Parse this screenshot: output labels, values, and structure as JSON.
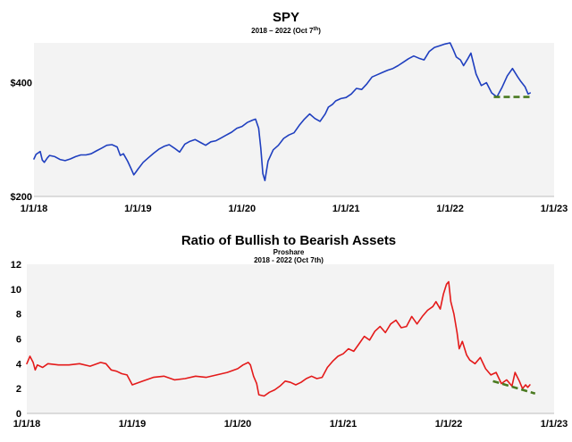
{
  "chart_data": [
    {
      "type": "line",
      "title": "SPY",
      "subtitle": "2018 – 2022 (Oct 7",
      "subtitle_sup": "th",
      "subtitle_tail": ")",
      "xlabel": "",
      "ylabel": "",
      "xlim": [
        2018.0,
        2023.0
      ],
      "ylim": [
        200,
        470
      ],
      "x_ticks": [
        2018,
        2019,
        2020,
        2021,
        2022,
        2023
      ],
      "x_tick_labels": [
        "1/1/18",
        "1/1/19",
        "1/1/20",
        "1/1/21",
        "1/1/22",
        "1/1/23"
      ],
      "y_ticks": [
        200,
        400
      ],
      "y_tick_labels": [
        "$200",
        "$400"
      ],
      "grid": false,
      "series": [
        {
          "color": "#1f3fbf",
          "x": [
            2018.0,
            2018.02,
            2018.06,
            2018.08,
            2018.1,
            2018.13,
            2018.15,
            2018.2,
            2018.25,
            2018.3,
            2018.35,
            2018.4,
            2018.45,
            2018.5,
            2018.55,
            2018.6,
            2018.65,
            2018.7,
            2018.75,
            2018.8,
            2018.83,
            2018.86,
            2018.9,
            2018.93,
            2018.96,
            2018.98,
            2019.0,
            2019.05,
            2019.1,
            2019.15,
            2019.2,
            2019.25,
            2019.3,
            2019.35,
            2019.4,
            2019.45,
            2019.5,
            2019.55,
            2019.6,
            2019.65,
            2019.7,
            2019.75,
            2019.8,
            2019.85,
            2019.9,
            2019.95,
            2020.0,
            2020.05,
            2020.1,
            2020.13,
            2020.16,
            2020.18,
            2020.2,
            2020.22,
            2020.25,
            2020.3,
            2020.35,
            2020.4,
            2020.45,
            2020.5,
            2020.55,
            2020.6,
            2020.65,
            2020.7,
            2020.75,
            2020.8,
            2020.83,
            2020.87,
            2020.9,
            2020.95,
            2021.0,
            2021.05,
            2021.1,
            2021.15,
            2021.2,
            2021.25,
            2021.3,
            2021.35,
            2021.4,
            2021.45,
            2021.5,
            2021.55,
            2021.6,
            2021.65,
            2021.7,
            2021.75,
            2021.8,
            2021.85,
            2021.9,
            2021.95,
            2022.0,
            2022.03,
            2022.06,
            2022.1,
            2022.13,
            2022.17,
            2022.2,
            2022.25,
            2022.3,
            2022.35,
            2022.4,
            2022.45,
            2022.5,
            2022.55,
            2022.6,
            2022.65,
            2022.68,
            2022.72,
            2022.75,
            2022.77
          ],
          "values": [
            266,
            274,
            279,
            264,
            260,
            268,
            272,
            270,
            265,
            263,
            266,
            270,
            273,
            273,
            275,
            280,
            285,
            290,
            291,
            287,
            272,
            275,
            262,
            250,
            238,
            243,
            248,
            260,
            268,
            276,
            283,
            288,
            291,
            285,
            278,
            292,
            297,
            300,
            295,
            290,
            296,
            298,
            303,
            308,
            313,
            320,
            323,
            330,
            334,
            336,
            320,
            285,
            240,
            228,
            262,
            282,
            290,
            302,
            308,
            312,
            325,
            336,
            345,
            337,
            332,
            345,
            357,
            362,
            368,
            372,
            374,
            380,
            390,
            388,
            398,
            410,
            414,
            418,
            422,
            425,
            430,
            436,
            442,
            447,
            443,
            440,
            455,
            462,
            465,
            468,
            470,
            458,
            445,
            440,
            430,
            442,
            452,
            415,
            395,
            400,
            382,
            375,
            392,
            412,
            425,
            410,
            402,
            393,
            380,
            382
          ]
        }
      ],
      "annotation_trendline": {
        "color": "#4a7a20",
        "x": [
          2022.42,
          2022.78
        ],
        "values": [
          375,
          375
        ],
        "dashed": true
      }
    },
    {
      "type": "line",
      "title": "Ratio of Bullish to Bearish Assets",
      "subtitle": "Proshare",
      "subtitle2": "2018 - 2022 (Oct 7th)",
      "xlabel": "",
      "ylabel": "",
      "xlim": [
        2018.0,
        2023.0
      ],
      "ylim": [
        0,
        12
      ],
      "x_ticks": [
        2018,
        2019,
        2020,
        2021,
        2022,
        2023
      ],
      "x_tick_labels": [
        "1/1/18",
        "1/1/19",
        "1/1/20",
        "1/1/21",
        "1/1/22",
        "1/1/23"
      ],
      "y_ticks": [
        0,
        2,
        4,
        6,
        8,
        10,
        12
      ],
      "y_tick_labels": [
        "0",
        "2",
        "4",
        "6",
        "8",
        "10",
        "12"
      ],
      "grid": false,
      "series": [
        {
          "color": "#e41a1a",
          "x": [
            2018.0,
            2018.03,
            2018.06,
            2018.08,
            2018.1,
            2018.15,
            2018.2,
            2018.3,
            2018.4,
            2018.5,
            2018.6,
            2018.7,
            2018.75,
            2018.8,
            2018.85,
            2018.9,
            2018.95,
            2019.0,
            2019.1,
            2019.2,
            2019.3,
            2019.4,
            2019.5,
            2019.6,
            2019.7,
            2019.8,
            2019.9,
            2020.0,
            2020.05,
            2020.1,
            2020.12,
            2020.15,
            2020.18,
            2020.2,
            2020.25,
            2020.3,
            2020.35,
            2020.4,
            2020.45,
            2020.5,
            2020.55,
            2020.6,
            2020.65,
            2020.7,
            2020.75,
            2020.8,
            2020.85,
            2020.9,
            2020.95,
            2021.0,
            2021.05,
            2021.1,
            2021.15,
            2021.2,
            2021.25,
            2021.3,
            2021.35,
            2021.4,
            2021.45,
            2021.5,
            2021.55,
            2021.6,
            2021.65,
            2021.7,
            2021.75,
            2021.8,
            2021.85,
            2021.88,
            2021.92,
            2021.95,
            2021.98,
            2022.0,
            2022.02,
            2022.05,
            2022.08,
            2022.1,
            2022.13,
            2022.17,
            2022.2,
            2022.25,
            2022.3,
            2022.35,
            2022.4,
            2022.45,
            2022.5,
            2022.55,
            2022.6,
            2022.63,
            2022.67,
            2022.7,
            2022.73,
            2022.75,
            2022.77
          ],
          "values": [
            4.0,
            4.6,
            4.1,
            3.5,
            3.9,
            3.7,
            4.0,
            3.9,
            3.9,
            4.0,
            3.8,
            4.1,
            4.0,
            3.5,
            3.4,
            3.2,
            3.1,
            2.3,
            2.6,
            2.9,
            3.0,
            2.7,
            2.8,
            3.0,
            2.9,
            3.1,
            3.3,
            3.6,
            3.9,
            4.1,
            3.9,
            3.0,
            2.4,
            1.5,
            1.4,
            1.7,
            1.9,
            2.2,
            2.6,
            2.5,
            2.3,
            2.5,
            2.8,
            3.0,
            2.8,
            2.9,
            3.7,
            4.2,
            4.6,
            4.8,
            5.2,
            5.0,
            5.6,
            6.2,
            5.9,
            6.6,
            7.0,
            6.5,
            7.2,
            7.5,
            6.9,
            7.0,
            7.8,
            7.2,
            7.8,
            8.3,
            8.6,
            9.0,
            8.4,
            9.6,
            10.4,
            10.6,
            9.0,
            8.0,
            6.5,
            5.2,
            5.8,
            4.7,
            4.3,
            4.0,
            4.5,
            3.6,
            3.1,
            3.3,
            2.4,
            2.7,
            2.2,
            3.3,
            2.6,
            2.0,
            2.3,
            2.1,
            2.3
          ]
        }
      ],
      "annotation_trendline": {
        "color": "#4a7a20",
        "x": [
          2022.42,
          2022.82
        ],
        "values": [
          2.6,
          1.6
        ],
        "dashed": true
      }
    }
  ]
}
